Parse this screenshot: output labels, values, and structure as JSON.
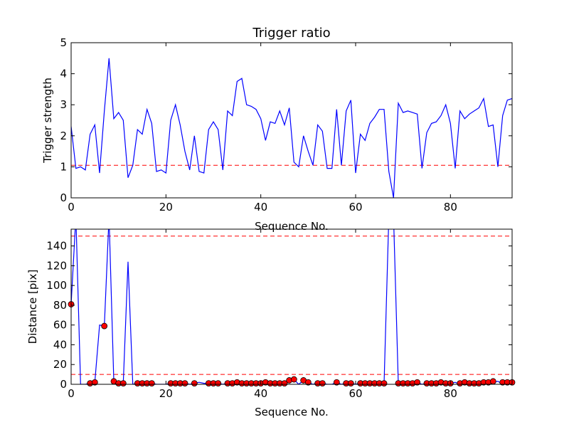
{
  "chart_data": [
    {
      "type": "line",
      "title": "Trigger ratio",
      "xlabel": "Sequence No.",
      "ylabel": "Trigger strength",
      "xlim": [
        0,
        93
      ],
      "ylim": [
        0,
        5
      ],
      "xticks": [
        0,
        20,
        40,
        60,
        80
      ],
      "yticks": [
        0,
        1,
        2,
        3,
        4,
        5
      ],
      "grid": false,
      "colors": {
        "line": "#0000ff",
        "threshold": "#ff0000"
      },
      "threshold": 1.05,
      "series": [
        {
          "x": [
            0,
            1,
            2,
            3,
            4,
            5,
            6,
            7,
            8,
            9,
            10,
            11,
            12,
            13,
            14,
            15,
            16,
            17,
            18,
            19,
            20,
            21,
            22,
            23,
            24,
            25,
            26,
            27,
            28,
            29,
            30,
            31,
            32,
            33,
            34,
            35,
            36,
            37,
            38,
            39,
            40,
            41,
            42,
            43,
            44,
            45,
            46,
            47,
            48,
            49,
            50,
            51,
            52,
            53,
            54,
            55,
            56,
            57,
            58,
            59,
            60,
            61,
            62,
            63,
            64,
            65,
            66,
            67,
            68,
            69,
            70,
            71,
            72,
            73,
            74,
            75,
            76,
            77,
            78,
            79,
            80,
            81,
            82,
            83,
            84,
            85,
            86,
            87,
            88,
            89,
            90,
            91,
            92,
            93
          ],
          "y": [
            2.3,
            0.95,
            1.0,
            0.9,
            2.05,
            2.35,
            0.8,
            2.8,
            4.5,
            2.55,
            2.75,
            2.5,
            0.65,
            1.05,
            2.2,
            2.05,
            2.85,
            2.4,
            0.85,
            0.9,
            0.8,
            2.5,
            3.0,
            2.35,
            1.5,
            0.9,
            2.0,
            0.85,
            0.8,
            2.2,
            2.45,
            2.2,
            0.9,
            2.8,
            2.65,
            3.75,
            3.85,
            3.0,
            2.95,
            2.85,
            2.55,
            1.85,
            2.45,
            2.4,
            2.8,
            2.35,
            2.9,
            1.15,
            1.0,
            2.0,
            1.5,
            1.05,
            2.35,
            2.15,
            0.95,
            0.95,
            2.85,
            1.05,
            2.8,
            3.15,
            0.8,
            2.05,
            1.85,
            2.4,
            2.6,
            2.85,
            2.85,
            0.85,
            0.0,
            3.05,
            2.75,
            2.8,
            2.75,
            2.7,
            0.95,
            2.1,
            2.4,
            2.45,
            2.65,
            3.0,
            2.4,
            0.95,
            2.8,
            2.55,
            2.7,
            2.8,
            2.9,
            3.2,
            2.3,
            2.35,
            1.0,
            2.65,
            3.15,
            3.2
          ]
        }
      ]
    },
    {
      "type": "line",
      "title": "",
      "xlabel": "Sequence No.",
      "ylabel": "Distance [pix]",
      "xlim": [
        0,
        93
      ],
      "ylim": [
        0,
        157
      ],
      "xticks": [
        0,
        20,
        40,
        60,
        80
      ],
      "yticks": [
        0,
        20,
        40,
        60,
        80,
        100,
        120,
        140
      ],
      "grid": false,
      "colors": {
        "line": "#0000ff",
        "threshold": "#ff0000",
        "marker": "#ff0000"
      },
      "thresholds": [
        10,
        150
      ],
      "series": [
        {
          "x": [
            0,
            1,
            2,
            3,
            4,
            5,
            6,
            7,
            8,
            9,
            10,
            11,
            12,
            13,
            14,
            15,
            16,
            17,
            18,
            19,
            20,
            21,
            22,
            23,
            24,
            25,
            26,
            27,
            28,
            29,
            30,
            31,
            32,
            33,
            34,
            35,
            36,
            37,
            38,
            39,
            40,
            41,
            42,
            43,
            44,
            45,
            46,
            47,
            48,
            49,
            50,
            51,
            52,
            53,
            54,
            55,
            56,
            57,
            58,
            59,
            60,
            61,
            62,
            63,
            64,
            65,
            66,
            67,
            68,
            69,
            70,
            71,
            72,
            73,
            74,
            75,
            76,
            77,
            78,
            79,
            80,
            81,
            82,
            83,
            84,
            85,
            86,
            87,
            88,
            89,
            90,
            91,
            92,
            93
          ],
          "y": [
            81,
            170,
            0,
            0,
            1,
            2,
            60,
            59,
            170,
            3,
            1,
            1,
            124,
            0,
            1,
            1,
            1,
            1,
            0,
            0,
            0,
            1,
            1,
            1,
            1,
            0,
            1,
            2,
            1,
            1,
            1,
            1,
            0,
            1,
            1,
            2,
            1,
            1,
            1,
            1,
            1,
            2,
            2,
            1,
            1,
            1,
            4,
            5,
            0,
            4,
            2,
            0,
            1,
            1,
            0,
            0,
            2,
            0,
            1,
            1,
            0,
            1,
            1,
            1,
            1,
            1,
            1,
            170,
            170,
            1,
            1,
            1,
            1,
            2,
            0,
            1,
            1,
            1,
            1,
            2,
            1,
            2,
            0,
            1,
            2,
            1,
            1,
            2,
            2,
            2,
            3,
            0,
            2,
            2
          ]
        }
      ],
      "markers": [
        {
          "x": 0,
          "y": 81
        },
        {
          "x": 4,
          "y": 1
        },
        {
          "x": 5,
          "y": 2
        },
        {
          "x": 7,
          "y": 59
        },
        {
          "x": 9,
          "y": 3
        },
        {
          "x": 10,
          "y": 1
        },
        {
          "x": 11,
          "y": 1
        },
        {
          "x": 14,
          "y": 1
        },
        {
          "x": 15,
          "y": 1
        },
        {
          "x": 16,
          "y": 1
        },
        {
          "x": 17,
          "y": 1
        },
        {
          "x": 21,
          "y": 1
        },
        {
          "x": 22,
          "y": 1
        },
        {
          "x": 23,
          "y": 1
        },
        {
          "x": 24,
          "y": 1
        },
        {
          "x": 26,
          "y": 1
        },
        {
          "x": 29,
          "y": 1
        },
        {
          "x": 30,
          "y": 1
        },
        {
          "x": 31,
          "y": 1
        },
        {
          "x": 33,
          "y": 1
        },
        {
          "x": 34,
          "y": 1
        },
        {
          "x": 35,
          "y": 2
        },
        {
          "x": 36,
          "y": 1
        },
        {
          "x": 37,
          "y": 1
        },
        {
          "x": 38,
          "y": 1
        },
        {
          "x": 39,
          "y": 1
        },
        {
          "x": 40,
          "y": 1
        },
        {
          "x": 41,
          "y": 2
        },
        {
          "x": 42,
          "y": 1
        },
        {
          "x": 43,
          "y": 1
        },
        {
          "x": 44,
          "y": 1
        },
        {
          "x": 45,
          "y": 1
        },
        {
          "x": 46,
          "y": 4
        },
        {
          "x": 47,
          "y": 5
        },
        {
          "x": 49,
          "y": 4
        },
        {
          "x": 50,
          "y": 2
        },
        {
          "x": 52,
          "y": 1
        },
        {
          "x": 53,
          "y": 1
        },
        {
          "x": 56,
          "y": 2
        },
        {
          "x": 58,
          "y": 1
        },
        {
          "x": 59,
          "y": 1
        },
        {
          "x": 61,
          "y": 1
        },
        {
          "x": 62,
          "y": 1
        },
        {
          "x": 63,
          "y": 1
        },
        {
          "x": 64,
          "y": 1
        },
        {
          "x": 65,
          "y": 1
        },
        {
          "x": 66,
          "y": 1
        },
        {
          "x": 69,
          "y": 1
        },
        {
          "x": 70,
          "y": 1
        },
        {
          "x": 71,
          "y": 1
        },
        {
          "x": 72,
          "y": 1
        },
        {
          "x": 73,
          "y": 2
        },
        {
          "x": 75,
          "y": 1
        },
        {
          "x": 76,
          "y": 1
        },
        {
          "x": 77,
          "y": 1
        },
        {
          "x": 78,
          "y": 2
        },
        {
          "x": 79,
          "y": 1
        },
        {
          "x": 80,
          "y": 1
        },
        {
          "x": 82,
          "y": 1
        },
        {
          "x": 83,
          "y": 2
        },
        {
          "x": 84,
          "y": 1
        },
        {
          "x": 85,
          "y": 1
        },
        {
          "x": 86,
          "y": 1
        },
        {
          "x": 87,
          "y": 2
        },
        {
          "x": 88,
          "y": 2
        },
        {
          "x": 89,
          "y": 3
        },
        {
          "x": 91,
          "y": 2
        },
        {
          "x": 92,
          "y": 2
        },
        {
          "x": 93,
          "y": 2
        }
      ]
    }
  ]
}
